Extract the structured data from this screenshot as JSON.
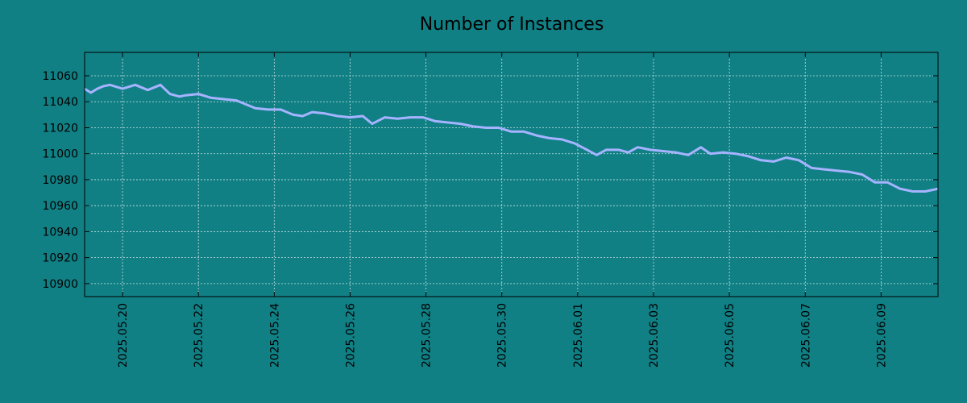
{
  "colors": {
    "background": "#108085",
    "line": "#a6b3ff",
    "grid": "#c8e0e0",
    "axis": "#000000"
  },
  "chart_data": {
    "type": "line",
    "title": "Number of Instances",
    "xlabel": "",
    "ylabel": "",
    "grid": true,
    "legend": "none",
    "xlim": [
      "2025-05-19T00:00",
      "2025-06-10T12:00"
    ],
    "ylim": [
      10890,
      11078
    ],
    "x_ticks": [
      "2025.05.20",
      "2025.05.22",
      "2025.05.24",
      "2025.05.26",
      "2025.05.28",
      "2025.05.30",
      "2025.06.01",
      "2025.06.03",
      "2025.06.05",
      "2025.06.07",
      "2025.06.09"
    ],
    "y_ticks": [
      "10900",
      "10920",
      "10940",
      "10960",
      "10980",
      "11000",
      "11020",
      "11040",
      "11060"
    ],
    "series": [
      {
        "points": [
          [
            "2025-05-19T00:00",
            11050
          ],
          [
            "2025-05-19T04:00",
            11047
          ],
          [
            "2025-05-19T08:00",
            11050
          ],
          [
            "2025-05-19T12:00",
            11052
          ],
          [
            "2025-05-19T16:00",
            11053
          ],
          [
            "2025-05-20T00:00",
            11050
          ],
          [
            "2025-05-20T08:00",
            11053
          ],
          [
            "2025-05-20T16:00",
            11049
          ],
          [
            "2025-05-21T00:00",
            11053
          ],
          [
            "2025-05-21T06:00",
            11046
          ],
          [
            "2025-05-21T12:00",
            11044
          ],
          [
            "2025-05-21T16:00",
            11045
          ],
          [
            "2025-05-22T00:00",
            11046
          ],
          [
            "2025-05-22T08:00",
            11043
          ],
          [
            "2025-05-22T16:00",
            11042
          ],
          [
            "2025-05-23T00:00",
            11041
          ],
          [
            "2025-05-23T12:00",
            11035
          ],
          [
            "2025-05-23T20:00",
            11034
          ],
          [
            "2025-05-24T04:00",
            11034
          ],
          [
            "2025-05-24T12:00",
            11030
          ],
          [
            "2025-05-24T18:00",
            11029
          ],
          [
            "2025-05-25T00:00",
            11032
          ],
          [
            "2025-05-25T08:00",
            11031
          ],
          [
            "2025-05-25T16:00",
            11029
          ],
          [
            "2025-05-26T00:00",
            11028
          ],
          [
            "2025-05-26T08:00",
            11029
          ],
          [
            "2025-05-26T14:00",
            11023
          ],
          [
            "2025-05-26T22:00",
            11028
          ],
          [
            "2025-05-27T06:00",
            11027
          ],
          [
            "2025-05-27T14:00",
            11028
          ],
          [
            "2025-05-27T22:00",
            11028
          ],
          [
            "2025-05-28T06:00",
            11025
          ],
          [
            "2025-05-28T14:00",
            11024
          ],
          [
            "2025-05-28T22:00",
            11023
          ],
          [
            "2025-05-29T06:00",
            11021
          ],
          [
            "2025-05-29T14:00",
            11020
          ],
          [
            "2025-05-29T22:00",
            11020
          ],
          [
            "2025-05-30T06:00",
            11017
          ],
          [
            "2025-05-30T14:00",
            11017
          ],
          [
            "2025-05-30T22:00",
            11014
          ],
          [
            "2025-05-31T06:00",
            11012
          ],
          [
            "2025-05-31T14:00",
            11011
          ],
          [
            "2025-05-31T22:00",
            11008
          ],
          [
            "2025-06-01T06:00",
            11003
          ],
          [
            "2025-06-01T12:00",
            10999
          ],
          [
            "2025-06-01T18:00",
            11003
          ],
          [
            "2025-06-02T02:00",
            11003
          ],
          [
            "2025-06-02T08:00",
            11001
          ],
          [
            "2025-06-02T14:00",
            11005
          ],
          [
            "2025-06-02T22:00",
            11003
          ],
          [
            "2025-06-03T06:00",
            11002
          ],
          [
            "2025-06-03T14:00",
            11001
          ],
          [
            "2025-06-03T22:00",
            10999
          ],
          [
            "2025-06-04T06:00",
            11005
          ],
          [
            "2025-06-04T12:00",
            11000
          ],
          [
            "2025-06-04T20:00",
            11001
          ],
          [
            "2025-06-05T04:00",
            11000
          ],
          [
            "2025-06-05T12:00",
            10998
          ],
          [
            "2025-06-05T20:00",
            10995
          ],
          [
            "2025-06-06T04:00",
            10994
          ],
          [
            "2025-06-06T12:00",
            10997
          ],
          [
            "2025-06-06T20:00",
            10995
          ],
          [
            "2025-06-07T04:00",
            10989
          ],
          [
            "2025-06-07T12:00",
            10988
          ],
          [
            "2025-06-07T20:00",
            10987
          ],
          [
            "2025-06-08T04:00",
            10986
          ],
          [
            "2025-06-08T12:00",
            10984
          ],
          [
            "2025-06-08T20:00",
            10978
          ],
          [
            "2025-06-09T04:00",
            10978
          ],
          [
            "2025-06-09T12:00",
            10973
          ],
          [
            "2025-06-09T20:00",
            10971
          ],
          [
            "2025-06-10T04:00",
            10971
          ],
          [
            "2025-06-10T12:00",
            10973
          ]
        ]
      }
    ]
  }
}
